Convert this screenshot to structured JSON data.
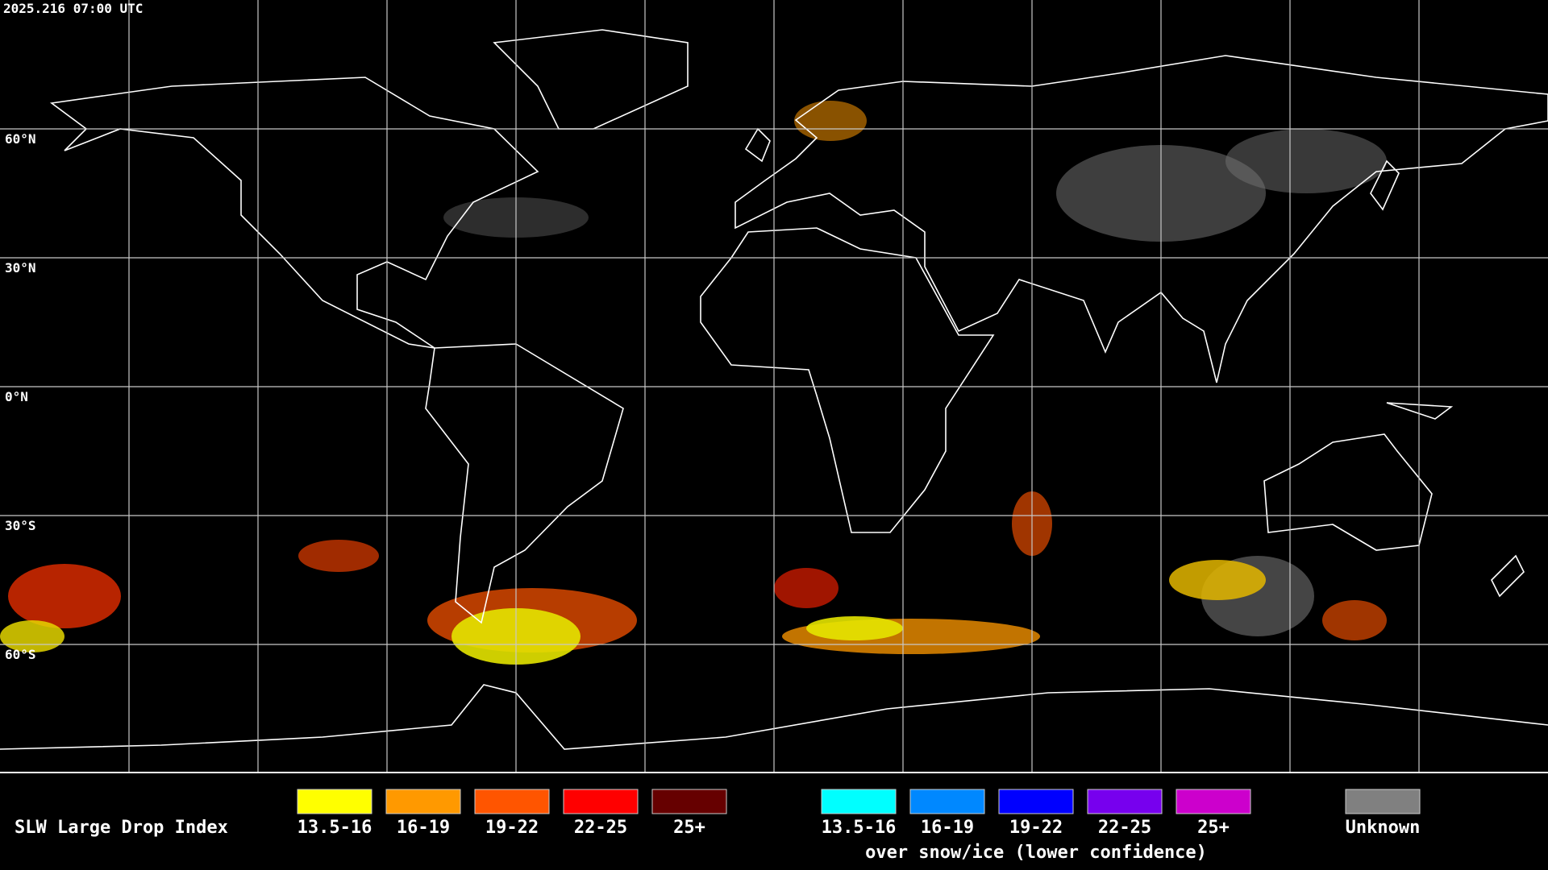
{
  "header": {
    "timestamp": "2025.216 07:00 UTC"
  },
  "map": {
    "latitude_labels": [
      "60°N",
      "30°N",
      "0°N",
      "30°S",
      "60°S"
    ]
  },
  "legend": {
    "title": "SLW Large Drop Index",
    "groups": [
      {
        "items": [
          {
            "label": "13.5-16",
            "color": "#ffff00"
          },
          {
            "label": "16-19",
            "color": "#ff9900"
          },
          {
            "label": "19-22",
            "color": "#ff5500"
          },
          {
            "label": "22-25",
            "color": "#ff0000"
          },
          {
            "label": "25+",
            "color": "#660000"
          }
        ]
      },
      {
        "caption": "over snow/ice (lower confidence)",
        "items": [
          {
            "label": "13.5-16",
            "color": "#00ffff"
          },
          {
            "label": "16-19",
            "color": "#0088ff"
          },
          {
            "label": "19-22",
            "color": "#0000ff"
          },
          {
            "label": "22-25",
            "color": "#7700ee"
          },
          {
            "label": "25+",
            "color": "#cc00cc"
          }
        ]
      }
    ],
    "unknown": {
      "label": "Unknown",
      "color": "#808080"
    }
  }
}
